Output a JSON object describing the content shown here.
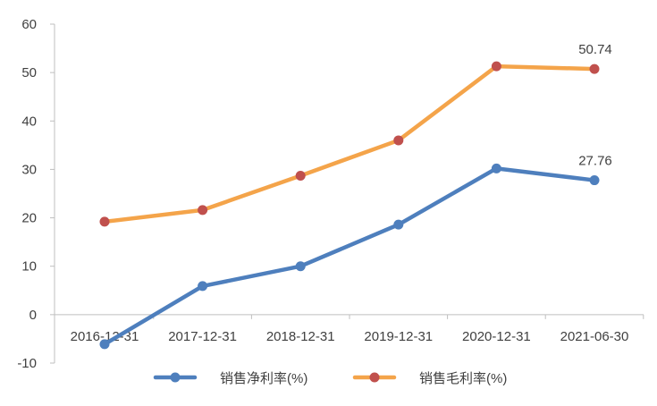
{
  "chart_data": {
    "type": "line",
    "categories": [
      "2016-12-31",
      "2017-12-31",
      "2018-12-31",
      "2019-12-31",
      "2020-12-31",
      "2021-06-30"
    ],
    "ylim": [
      -10,
      60
    ],
    "yticks": [
      -10,
      0,
      10,
      20,
      30,
      40,
      50,
      60
    ],
    "grid": false,
    "legend": "bottom-center",
    "series": [
      {
        "name": "销售净利率(%)",
        "values": [
          -6.1,
          5.9,
          10.0,
          18.6,
          30.2,
          27.76
        ],
        "line_color": "#4e7fbd",
        "marker_color": "#4e7fbd",
        "end_label": "27.76"
      },
      {
        "name": "销售毛利率(%)",
        "values": [
          19.2,
          21.6,
          28.7,
          36.0,
          51.3,
          50.74
        ],
        "line_color": "#f4a44a",
        "marker_color": "#c0504d",
        "end_label": "50.74"
      }
    ]
  }
}
